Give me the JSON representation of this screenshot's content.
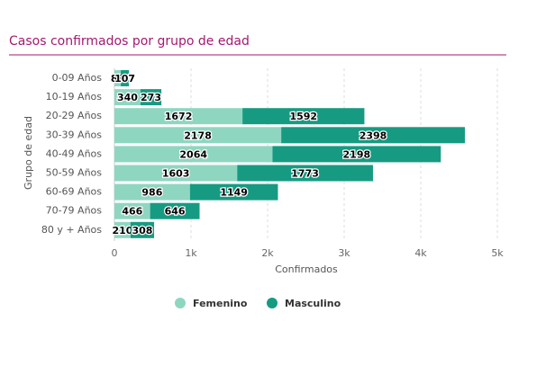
{
  "chart_data": {
    "type": "bar",
    "orientation": "horizontal",
    "stacked": true,
    "title": "Casos confirmados por grupo de edad",
    "x_label": "Confirmados",
    "y_label": "Grupo de edad",
    "categories": [
      "0-09 Años",
      "10-19 Años",
      "20-29 Años",
      "30-39 Años",
      "40-49 Años",
      "50-59 Años",
      "60-69 Años",
      "70-79 Años",
      "80 y + Años"
    ],
    "series": [
      {
        "name": "Femenino",
        "color": "#8fd6c1",
        "values": [
          83,
          340,
          1672,
          2178,
          2064,
          1603,
          986,
          466,
          210
        ]
      },
      {
        "name": "Masculino",
        "color": "#169b82",
        "values": [
          107,
          273,
          1592,
          2398,
          2198,
          1773,
          1149,
          646,
          308
        ]
      }
    ],
    "xlim": [
      0,
      5000
    ],
    "xticks": [
      0,
      {
        "value": 1000,
        "label": "1k"
      },
      {
        "value": 2000,
        "label": "2k"
      },
      {
        "value": 3000,
        "label": "3k"
      },
      {
        "value": 4000,
        "label": "4k"
      },
      {
        "value": 5000,
        "label": "5k"
      }
    ],
    "grid": true,
    "legend": "bottom"
  }
}
